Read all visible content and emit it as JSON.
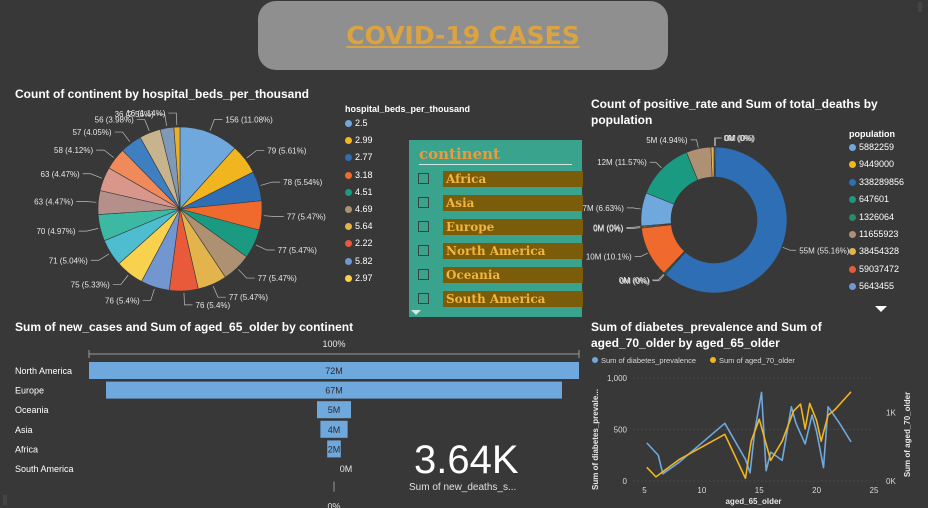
{
  "page": {
    "title": "COVID-19 CASES"
  },
  "pie": {
    "title": "Count of continent by hospital_beds_per_thousand",
    "legend_title": "hospital_beds_per_thousand",
    "legend": [
      {
        "label": "2.5",
        "color": "#6fa8dc"
      },
      {
        "label": "2.99",
        "color": "#f0b51f"
      },
      {
        "label": "2.77",
        "color": "#2e6eb5"
      },
      {
        "label": "3.18",
        "color": "#ef6a2c"
      },
      {
        "label": "4.51",
        "color": "#1a9b81"
      },
      {
        "label": "4.69",
        "color": "#ad9172"
      },
      {
        "label": "5.64",
        "color": "#e3b34c"
      },
      {
        "label": "2.22",
        "color": "#e85a3a"
      },
      {
        "label": "5.82",
        "color": "#7296d0"
      },
      {
        "label": "2.97",
        "color": "#f8d24e"
      }
    ]
  },
  "donut": {
    "title_line1": "Count of positive_rate and Sum of total_deaths by",
    "title_line2": "population",
    "legend_title": "population",
    "legend": [
      {
        "label": "5882259",
        "color": "#6fa8dc"
      },
      {
        "label": "9449000",
        "color": "#f0b51f"
      },
      {
        "label": "338289856",
        "color": "#2e6eb5"
      },
      {
        "label": "647601",
        "color": "#1a9b81"
      },
      {
        "label": "1326064",
        "color": "#2a8a6e"
      },
      {
        "label": "11655923",
        "color": "#ad9172"
      },
      {
        "label": "38454328",
        "color": "#e3b34c"
      },
      {
        "label": "59037472",
        "color": "#e85a3a"
      },
      {
        "label": "5643455",
        "color": "#7296d0"
      }
    ]
  },
  "slicer": {
    "header": "continent",
    "items": [
      "Africa",
      "Asia",
      "Europe",
      "North America",
      "Oceania",
      "South America"
    ]
  },
  "funnel": {
    "title": "Sum of new_cases and Sum of aged_65_older by continent",
    "top_pct": "100%",
    "bottom_pct": "0%"
  },
  "card": {
    "value": "3.64K",
    "label": "Sum of new_deaths_s..."
  },
  "line": {
    "title_line1": "Sum of diabetes_prevalence and Sum of",
    "title_line2": "aged_70_older by aged_65_older",
    "legend": [
      {
        "label": "Sum of diabetes_prevalence",
        "color": "#6fa8dc"
      },
      {
        "label": "Sum of aged_70_older",
        "color": "#f0b51f"
      }
    ],
    "ylabel_left": "Sum of diabetes_prevale...",
    "ylabel_right": "Sum of aged_70_older",
    "xlabel": "aged_65_older"
  },
  "chart_data": [
    {
      "type": "pie",
      "title": "Count of continent by hospital_beds_per_thousand",
      "slices": [
        {
          "label": "156 (11.08%)",
          "value": 156,
          "color": "#6fa8dc"
        },
        {
          "label": "79 (5.61%)",
          "value": 79,
          "color": "#f0b51f"
        },
        {
          "label": "78 (5.54%)",
          "value": 78,
          "color": "#2e6eb5"
        },
        {
          "label": "77 (5.47%)",
          "value": 77,
          "color": "#ef6a2c"
        },
        {
          "label": "77 (5.47%)",
          "value": 77,
          "color": "#1a9b81"
        },
        {
          "label": "77 (5.47%)",
          "value": 77,
          "color": "#ad9172"
        },
        {
          "label": "77 (5.47%)",
          "value": 77,
          "color": "#e3b34c"
        },
        {
          "label": "76 (5.4%)",
          "value": 76,
          "color": "#e85a3a"
        },
        {
          "label": "76 (5.4%)",
          "value": 76,
          "color": "#7296d0"
        },
        {
          "label": "75 (5.33%)",
          "value": 75,
          "color": "#f8d24e"
        },
        {
          "label": "71 (5.04%)",
          "value": 71,
          "color": "#4dbdcf"
        },
        {
          "label": "70 (4.97%)",
          "value": 70,
          "color": "#3cb9a3"
        },
        {
          "label": "63 (4.47%)",
          "value": 63,
          "color": "#b58f89"
        },
        {
          "label": "63 (4.47%)",
          "value": 63,
          "color": "#d9968b"
        },
        {
          "label": "58 (4.12%)",
          "value": 58,
          "color": "#f08a5a"
        },
        {
          "label": "57 (4.05%)",
          "value": 57,
          "color": "#3d7fc1"
        },
        {
          "label": "56 (3.98%)",
          "value": 56,
          "color": "#c8b48c"
        },
        {
          "label": "36 (2.56%)",
          "value": 36,
          "color": "#7e9ab8"
        },
        {
          "label": "16 (1.14%)",
          "value": 16,
          "color": "#e8b02a"
        }
      ]
    },
    {
      "type": "pie",
      "title": "Count of positive_rate and Sum of total_deaths by population",
      "slices": [
        {
          "label": "0M (0%)",
          "value": 0.2,
          "color": "#6fa8dc"
        },
        {
          "label": "0M (0%)",
          "value": 0.2,
          "color": "#f0b51f"
        },
        {
          "label": "55M (55.16%)",
          "value": 55.16,
          "color": "#2e6eb5"
        },
        {
          "label": "0M (0%)",
          "value": 0.2,
          "color": "#1a9b81"
        },
        {
          "label": "0M (0%)",
          "value": 0.2,
          "color": "#2a8a6e"
        },
        {
          "label": "10M (10.1%)",
          "value": 10.1,
          "color": "#ef6a2c"
        },
        {
          "label": "0M (0%)",
          "value": 0.2,
          "color": "#ad9172"
        },
        {
          "label": "0M (0%)",
          "value": 0.2,
          "color": "#e3b34c"
        },
        {
          "label": "7M (6.63%)",
          "value": 6.63,
          "color": "#6fa8dc"
        },
        {
          "label": "12M (11.57%)",
          "value": 11.57,
          "color": "#1a9b81"
        },
        {
          "label": "5M (4.94%)",
          "value": 4.94,
          "color": "#ad9172"
        },
        {
          "label": "",
          "value": 0.6,
          "color": "#e3b34c"
        }
      ]
    },
    {
      "type": "bar",
      "title": "Sum of new_cases and Sum of aged_65_older by continent",
      "categories": [
        "North America",
        "Europe",
        "Oceania",
        "Asia",
        "Africa",
        "South America"
      ],
      "values": [
        72,
        67,
        5,
        4,
        2,
        0
      ],
      "labels": [
        "72M",
        "67M",
        "5M",
        "4M",
        "2M",
        "0M"
      ],
      "color": "#6fa8dc"
    },
    {
      "type": "line",
      "title": "Sum of diabetes_prevalence and Sum of aged_70_older by aged_65_older",
      "xlabel": "aged_65_older",
      "xlim": [
        4,
        25
      ],
      "xticks": [
        "5",
        "10",
        "15",
        "20",
        "25"
      ],
      "y_left_lim": [
        0,
        1000
      ],
      "y_left_ticks": [
        "0",
        "500",
        "1,000"
      ],
      "y_right_lim": [
        0,
        1500
      ],
      "y_right_ticks": [
        "0K",
        "1K"
      ],
      "series": [
        {
          "name": "Sum of diabetes_prevalence",
          "color": "#6fa8dc",
          "axis": "left",
          "points": [
            [
              5.2,
              370
            ],
            [
              6.2,
              250
            ],
            [
              6.6,
              70
            ],
            [
              8,
              180
            ],
            [
              12,
              560
            ],
            [
              13.8,
              210
            ],
            [
              14.2,
              80
            ],
            [
              14.6,
              480
            ],
            [
              15.2,
              860
            ],
            [
              15.6,
              100
            ],
            [
              16,
              280
            ],
            [
              17,
              200
            ],
            [
              17.8,
              720
            ],
            [
              18.2,
              560
            ],
            [
              19,
              360
            ],
            [
              19.6,
              640
            ],
            [
              20,
              480
            ],
            [
              20.6,
              130
            ],
            [
              21,
              720
            ],
            [
              22,
              560
            ],
            [
              23,
              380
            ]
          ]
        },
        {
          "name": "Sum of aged_70_older",
          "color": "#f0b51f",
          "axis": "right",
          "points": [
            [
              5.2,
              200
            ],
            [
              6,
              60
            ],
            [
              8,
              310
            ],
            [
              12,
              680
            ],
            [
              13.8,
              40
            ],
            [
              14.3,
              580
            ],
            [
              15,
              900
            ],
            [
              16,
              300
            ],
            [
              17,
              580
            ],
            [
              18,
              1020
            ],
            [
              18.6,
              1120
            ],
            [
              19,
              760
            ],
            [
              19.4,
              1130
            ],
            [
              20,
              880
            ],
            [
              20.4,
              580
            ],
            [
              21,
              960
            ],
            [
              21.6,
              1040
            ],
            [
              23,
              1300
            ]
          ]
        }
      ]
    }
  ]
}
